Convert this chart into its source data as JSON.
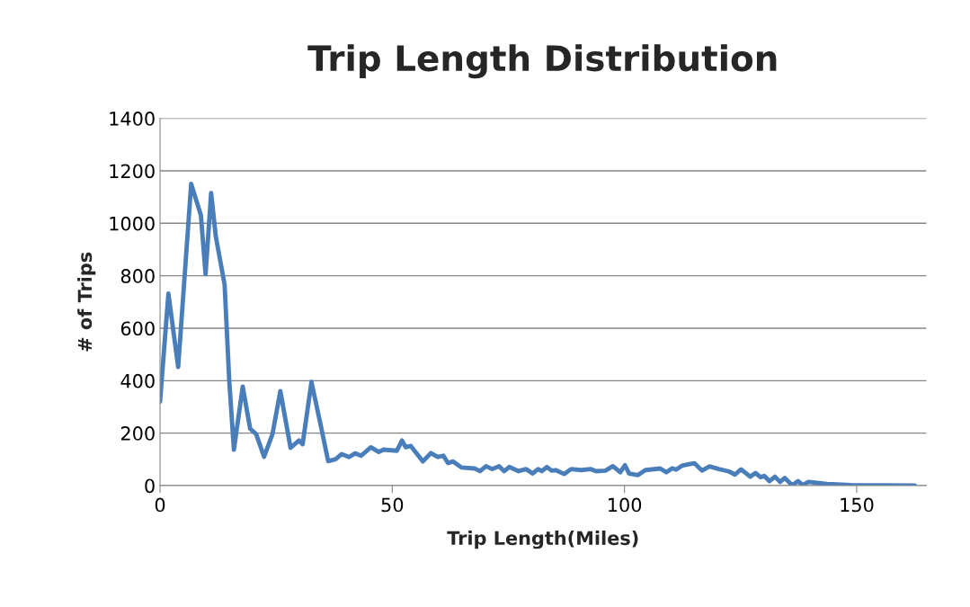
{
  "chart_data": {
    "type": "line",
    "title": "Trip Length Distribution",
    "xlabel": "Trip Length(Miles)",
    "ylabel": "# of Trips",
    "xlim": [
      0,
      165
    ],
    "xticks": [
      0,
      50,
      100,
      150
    ],
    "ylim": [
      0,
      1400
    ],
    "yticks": [
      0,
      200,
      400,
      600,
      800,
      1000,
      1200,
      1400
    ],
    "grid": "y",
    "marker": "none",
    "line_style": "solid",
    "series": [
      {
        "color": "#4a7ebb",
        "x": [
          0,
          1.8,
          3.9,
          6.7,
          8.8,
          9.8,
          11.0,
          12.0,
          13.9,
          14.9,
          15.9,
          17.8,
          19.4,
          20.7,
          22.4,
          24.2,
          25.9,
          28.1,
          29.9,
          30.7,
          32.6,
          34.6,
          36.2,
          37.8,
          39.1,
          40.7,
          42.0,
          43.3,
          45.4,
          47.1,
          48.1,
          51.0,
          52.1,
          52.9,
          54.0,
          56.6,
          58.3,
          59.8,
          61.0,
          62.0,
          63.1,
          64.9,
          67.8,
          68.9,
          70.2,
          71.5,
          73.0,
          74.1,
          75.2,
          77.2,
          78.8,
          80.2,
          81.4,
          82.2,
          83.3,
          84.3,
          85.2,
          87.0,
          88.5,
          90.7,
          92.7,
          93.9,
          95.9,
          97.5,
          99.1,
          100.1,
          101.0,
          102.9,
          104.5,
          107.7,
          109.0,
          110.3,
          111.1,
          112.5,
          115.1,
          116.7,
          118.3,
          120.3,
          122.5,
          123.8,
          125.1,
          127.1,
          128.2,
          129.3,
          130.1,
          131.2,
          132.4,
          133.5,
          134.5,
          136.1,
          137.4,
          138.4,
          139.6,
          143.6,
          148.7,
          162.5
        ],
        "values": [
          320,
          732,
          452,
          1150,
          1030,
          806,
          1115,
          950,
          766,
          400,
          137,
          377,
          217,
          196,
          110,
          196,
          360,
          144,
          172,
          158,
          395,
          230,
          93,
          101,
          120,
          109,
          123,
          114,
          146,
          128,
          137,
          133,
          172,
          146,
          151,
          92,
          124,
          109,
          114,
          86,
          92,
          69,
          65,
          55,
          74,
          63,
          74,
          55,
          71,
          55,
          63,
          46,
          63,
          55,
          71,
          57,
          59,
          44,
          63,
          59,
          63,
          55,
          57,
          74,
          51,
          78,
          46,
          40,
          59,
          65,
          51,
          66,
          61,
          77,
          85,
          57,
          73,
          63,
          54,
          42,
          62,
          34,
          48,
          32,
          37,
          17,
          34,
          14,
          29,
          2,
          17,
          2,
          14,
          6,
          2,
          0
        ]
      }
    ]
  }
}
